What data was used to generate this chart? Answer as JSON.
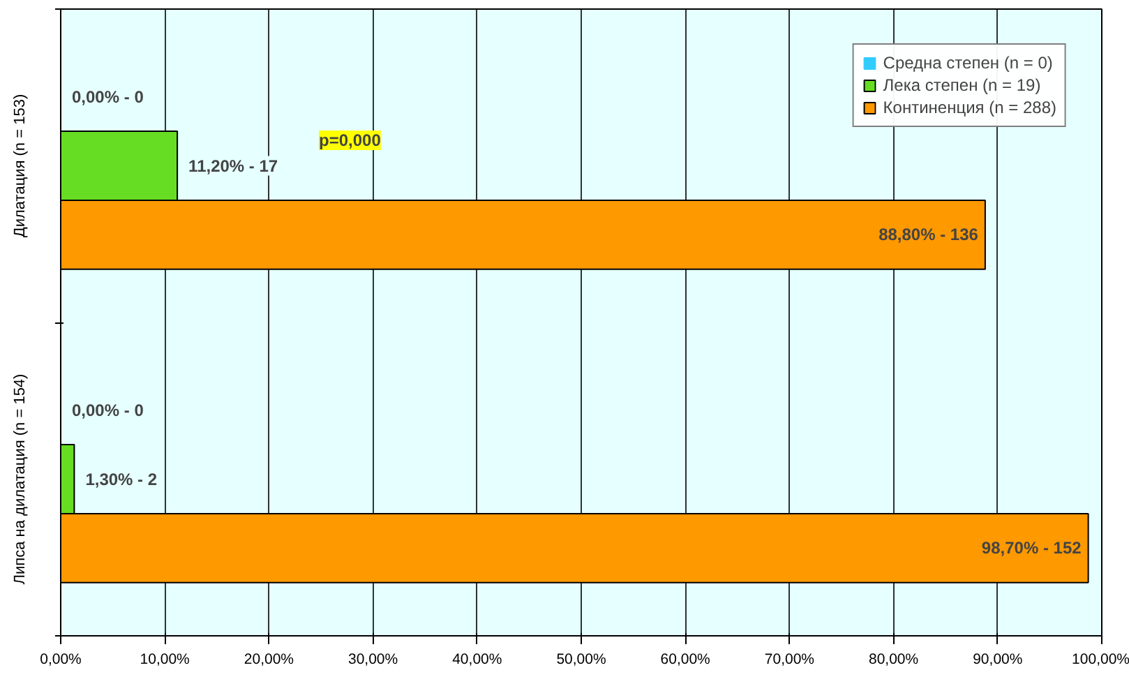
{
  "chart_data": {
    "type": "bar",
    "orientation": "horizontal",
    "categories": [
      "Дилатация (n = 153)",
      "Липса на дилатация (n = 154)"
    ],
    "series": [
      {
        "name": "Средна степен (n = 0)",
        "color": "#33ccff",
        "values": [
          0,
          0
        ],
        "value_labels": [
          "0,00% - 0",
          "0,00% - 0"
        ]
      },
      {
        "name": "Лека степен (n = 19)",
        "color": "#66dd22",
        "values": [
          11.2,
          1.3
        ],
        "value_labels": [
          "11,20% - 17",
          "1,30% - 2"
        ]
      },
      {
        "name": "Континенция (n = 288)",
        "color": "#ff9900",
        "values": [
          88.8,
          98.7
        ],
        "value_labels": [
          "88,80% - 136",
          "98,70% - 152"
        ]
      }
    ],
    "xlim": [
      0,
      100
    ],
    "xticks": [
      {
        "value": 0,
        "label": "0,00%"
      },
      {
        "value": 10,
        "label": "10,00%"
      },
      {
        "value": 20,
        "label": "20,00%"
      },
      {
        "value": 30,
        "label": "30,00%"
      },
      {
        "value": 40,
        "label": "40,00%"
      },
      {
        "value": 50,
        "label": "50,00%"
      },
      {
        "value": 60,
        "label": "60,00%"
      },
      {
        "value": 70,
        "label": "70,00%"
      },
      {
        "value": 80,
        "label": "80,00%"
      },
      {
        "value": 90,
        "label": "90,00%"
      },
      {
        "value": 100,
        "label": "100,00%"
      }
    ],
    "annotations": [
      "p=0,000"
    ],
    "grid": "x",
    "legend": "top right"
  }
}
